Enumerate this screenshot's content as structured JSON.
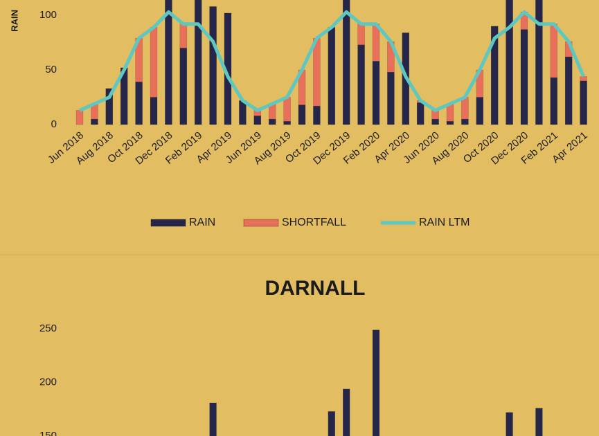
{
  "chart_data": [
    {
      "type": "bar",
      "y_label": "RAIN",
      "categories": [
        "Jun 2018",
        null,
        "Aug 2018",
        null,
        "Oct 2018",
        null,
        "Dec 2018",
        null,
        "Feb 2019",
        null,
        "Apr 2019",
        null,
        "Jun 2019",
        null,
        "Aug 2019",
        null,
        "Oct 2019",
        null,
        "Dec 2019",
        null,
        "Feb 2020",
        null,
        "Apr 2020",
        null,
        "Jun 2020",
        null,
        "Aug 2020",
        null,
        "Oct 2020",
        null,
        "Dec 2020",
        null,
        "Feb 2021",
        null,
        "Apr 2021"
      ],
      "series": [
        {
          "name": "RAIN",
          "color": "#25264a",
          "values": [
            0,
            5,
            33,
            52,
            39,
            25,
            125,
            70,
            125,
            108,
            102,
            22,
            8,
            5,
            3,
            18,
            17,
            89,
            130,
            73,
            58,
            48,
            84,
            20,
            5,
            3,
            5,
            25,
            90,
            130,
            87,
            120,
            43,
            62,
            40
          ]
        },
        {
          "name": "SHORTFALL",
          "color": "#e8705a",
          "values": [
            13,
            14,
            0,
            0,
            40,
            64,
            0,
            22,
            0,
            0,
            0,
            0,
            5,
            14,
            22,
            32,
            62,
            0,
            0,
            19,
            34,
            28,
            0,
            2,
            8,
            16,
            20,
            25,
            0,
            0,
            16,
            0,
            49,
            14,
            4
          ]
        },
        {
          "name": "RAIN LTM",
          "color": "#5ec8c0",
          "type": "line",
          "values": [
            13,
            19,
            25,
            50,
            79,
            89,
            103,
            92,
            92,
            76,
            44,
            22,
            13,
            19,
            25,
            50,
            79,
            89,
            103,
            92,
            92,
            76,
            44,
            22,
            13,
            19,
            25,
            50,
            79,
            89,
            103,
            92,
            92,
            76,
            44
          ]
        }
      ],
      "ylim": [
        0,
        114
      ],
      "yticks": [
        0,
        50,
        100
      ]
    },
    {
      "type": "bar",
      "title": "DARNALL",
      "color": "#25264a",
      "values": [
        null,
        null,
        null,
        null,
        null,
        null,
        null,
        null,
        null,
        181,
        null,
        null,
        null,
        null,
        null,
        null,
        null,
        173,
        194,
        null,
        249,
        null,
        null,
        null,
        null,
        null,
        null,
        null,
        null,
        172,
        null,
        176,
        null,
        null,
        null
      ],
      "ylim": [
        150,
        263
      ],
      "yticks": [
        150,
        200,
        250
      ]
    }
  ]
}
